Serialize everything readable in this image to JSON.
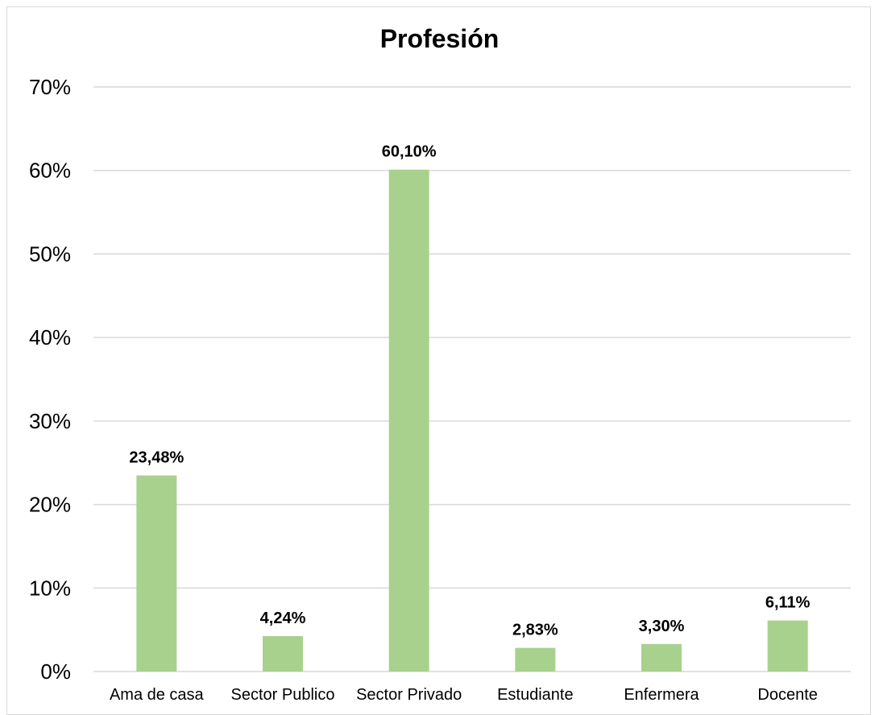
{
  "chart_data": {
    "type": "bar",
    "title": "Profesión",
    "categories": [
      "Ama de casa",
      "Sector Publico",
      "Sector Privado",
      "Estudiante",
      "Enfermera",
      "Docente"
    ],
    "values": [
      23.48,
      4.24,
      60.1,
      2.83,
      3.3,
      6.11
    ],
    "data_labels": [
      "23,48%",
      "4,24%",
      "60,10%",
      "2,83%",
      "3,30%",
      "6,11%"
    ],
    "ylim": [
      0,
      70
    ],
    "yticks": [
      0,
      10,
      20,
      30,
      40,
      50,
      60,
      70
    ],
    "ytick_labels": [
      "0%",
      "10%",
      "20%",
      "30%",
      "40%",
      "50%",
      "60%",
      "70%"
    ],
    "grid": true,
    "legend": "none",
    "bar_color": "#a9d18e",
    "grid_color": "#d9d9d9"
  }
}
